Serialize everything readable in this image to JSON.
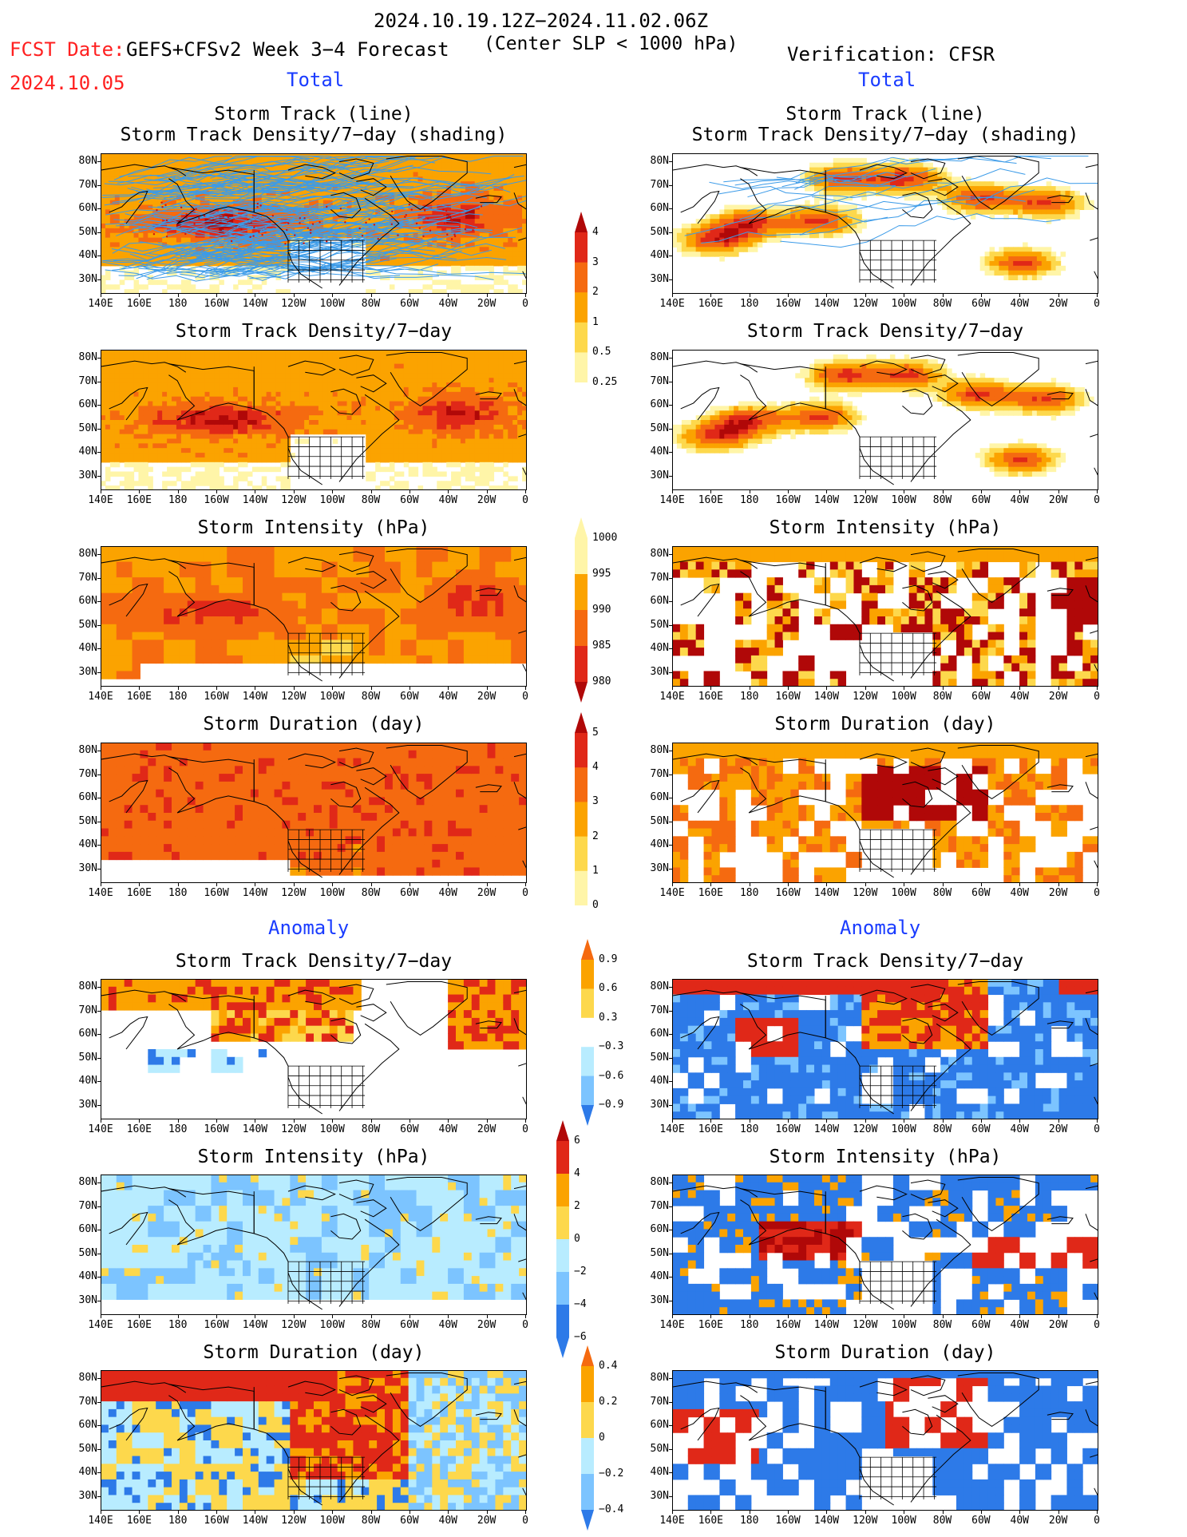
{
  "header": {
    "date_range": "2024.10.19.12Z−2024.11.02.06Z",
    "fcst_label": "FCST Date:",
    "model": "GEFS+CFSv2 Week 3−4 Forecast",
    "fcst_date": "2024.10.05",
    "criterion": "(Center SLP < 1000 hPa)",
    "verification": "Verification: CFSR"
  },
  "sections": {
    "total": "Total",
    "anomaly": "Anomaly"
  },
  "panel_titles": {
    "track_line": "Storm Track (line)",
    "track_shading": "Storm Track Density/7−day (shading)",
    "density": "Storm Track Density/7−day",
    "intensity": "Storm Intensity (hPa)",
    "duration": "Storm Duration (day)"
  },
  "axes": {
    "lat_labels": [
      "80N",
      "70N",
      "60N",
      "50N",
      "40N",
      "30N"
    ],
    "lon_labels": [
      "140E",
      "160E",
      "180",
      "160W",
      "140W",
      "120W",
      "100W",
      "80W",
      "60W",
      "40W",
      "20W",
      "0"
    ]
  },
  "colorbars": {
    "density_total": [
      "4",
      "3",
      "2",
      "1",
      "0.5",
      "0.25"
    ],
    "intensity_total": [
      "1000",
      "995",
      "990",
      "985",
      "980"
    ],
    "duration_total": [
      "5",
      "4",
      "3",
      "2",
      "1",
      "0"
    ],
    "density_anom": [
      "0.9",
      "0.6",
      "0.3",
      "−0.3",
      "−0.6",
      "−0.9"
    ],
    "intensity_anom": [
      "6",
      "4",
      "2",
      "0",
      "−2",
      "−4",
      "−6"
    ],
    "duration_anom": [
      "0.4",
      "0.2",
      "0",
      "−0.2",
      "−0.4"
    ]
  },
  "colors": {
    "ltyellow": "#fff5a8",
    "yellow": "#fdd84c",
    "orange": "#fba300",
    "dorange": "#f56a10",
    "red": "#e02818",
    "dred": "#b00808",
    "ltblue": "#b8ecff",
    "mblue": "#7cc4ff",
    "blue": "#2d7ae8",
    "track": "#3c9be8"
  }
}
